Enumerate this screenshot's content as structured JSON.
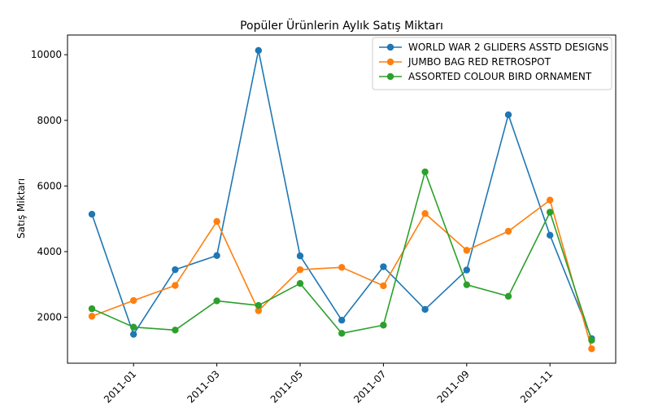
{
  "chart_data": {
    "type": "line",
    "title": "Popüler Ürünlerin Aylık Satış Miktarı",
    "xlabel": "",
    "ylabel": "Satış Miktarı",
    "x": [
      "2010-12",
      "2011-01",
      "2011-02",
      "2011-03",
      "2011-04",
      "2011-05",
      "2011-06",
      "2011-07",
      "2011-08",
      "2011-09",
      "2011-10",
      "2011-11",
      "2011-12"
    ],
    "x_ticks": [
      "2011-01",
      "2011-03",
      "2011-05",
      "2011-07",
      "2011-09",
      "2011-11"
    ],
    "y_ticks": [
      2000,
      4000,
      6000,
      8000,
      10000
    ],
    "ylim": [
      600,
      10600
    ],
    "legend_position": "top-right",
    "grid": false,
    "series": [
      {
        "name": "WORLD WAR 2 GLIDERS ASSTD DESIGNS",
        "color": "#1f77b4",
        "values": [
          5140,
          1480,
          3450,
          3880,
          10130,
          3870,
          1910,
          3540,
          2240,
          3440,
          8170,
          4500,
          1350
        ]
      },
      {
        "name": "JUMBO BAG RED RETROSPOT",
        "color": "#ff7f0e",
        "values": [
          2030,
          2510,
          2970,
          4920,
          2200,
          3450,
          3520,
          2960,
          5160,
          4040,
          4620,
          5570,
          1040
        ]
      },
      {
        "name": "ASSORTED COLOUR BIRD ORNAMENT",
        "color": "#2ca02c",
        "values": [
          2260,
          1700,
          1610,
          2500,
          2360,
          3030,
          1510,
          1760,
          6430,
          2990,
          2640,
          5200,
          1300
        ]
      }
    ]
  }
}
